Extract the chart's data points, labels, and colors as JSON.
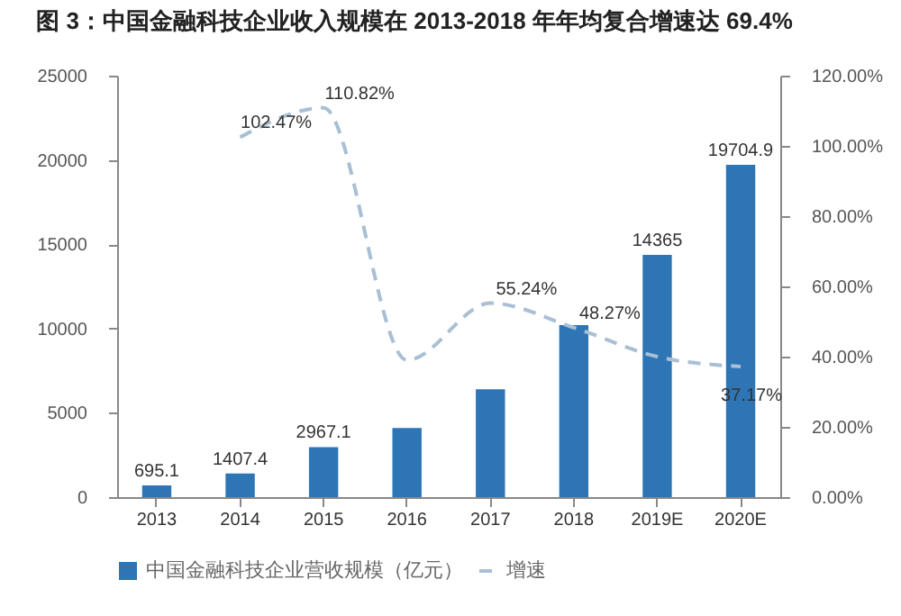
{
  "chart_data": {
    "type": "bar",
    "title": "图 3：中国金融科技企业收入规模在 2013-2018 年年均复合增速达 69.4%",
    "categories": [
      "2013",
      "2014",
      "2015",
      "2016",
      "2017",
      "2018",
      "2019E",
      "2020E"
    ],
    "series": [
      {
        "name": "中国金融科技企业营收规模（亿元）",
        "color": "#2e75b6",
        "values": [
          695.1,
          1407.4,
          2967.1,
          4100,
          6400,
          10200,
          14365,
          19704.9
        ],
        "value_labels": [
          "695.1",
          "1407.4",
          "2967.1",
          null,
          null,
          null,
          "14365",
          "19704.9"
        ]
      },
      {
        "name": "增速",
        "type": "line",
        "axis": "y2",
        "color": "#a9bfd4",
        "line_style": "dashed",
        "values": [
          null,
          102.47,
          110.82,
          39,
          55.24,
          48.27,
          40,
          37.17
        ],
        "value_labels": [
          null,
          "102.47%",
          "110.82%",
          null,
          "55.24%",
          "48.27%",
          null,
          "37.17%"
        ]
      }
    ],
    "ylim": [
      0,
      25000
    ],
    "yticks": [
      0,
      5000,
      10000,
      15000,
      20000,
      25000
    ],
    "y2lim": [
      0,
      120
    ],
    "y2ticks": [
      {
        "value": 0,
        "label": "0.00%"
      },
      {
        "value": 20,
        "label": "20.00%"
      },
      {
        "value": 40,
        "label": "40.00%"
      },
      {
        "value": 60,
        "label": "60.00%"
      },
      {
        "value": 80,
        "label": "80.00%"
      },
      {
        "value": 100,
        "label": "100.00%"
      },
      {
        "value": 120,
        "label": "120.00%"
      }
    ],
    "legend": "bottom",
    "grid": false
  }
}
